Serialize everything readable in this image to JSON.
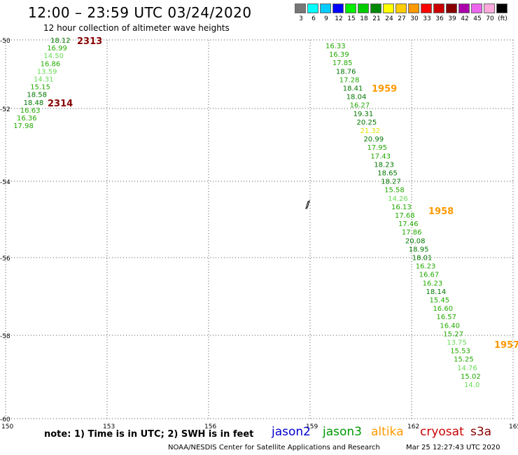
{
  "header": {
    "title": "12:00 – 23:59 UTC 03/24/2020",
    "subtitle": "12 hour collection of altimeter wave heights"
  },
  "color_scale": {
    "colors": [
      "#777777",
      "#00ffff",
      "#00ccff",
      "#0000ff",
      "#00ee00",
      "#00cc00",
      "#008800",
      "#ffff00",
      "#ffcc00",
      "#ff9900",
      "#ff0000",
      "#cc0000",
      "#880000",
      "#aa00aa",
      "#ee66ee",
      "#ffaadd",
      "#000000"
    ],
    "labels": [
      "3",
      "6",
      "9",
      "12",
      "15",
      "18",
      "21",
      "24",
      "27",
      "30",
      "33",
      "36",
      "39",
      "42",
      "45",
      "70",
      "(ft)"
    ]
  },
  "axes": {
    "lon_labels": [
      "150",
      "153",
      "156",
      "159",
      "162",
      "165"
    ],
    "lat_labels": [
      "-50",
      "-52",
      "-54",
      "-56",
      "-58",
      "-60"
    ]
  },
  "passes": [
    {
      "label": "2313",
      "color": "#880000"
    },
    {
      "label": "2314",
      "color": "#880000"
    },
    {
      "label": "1959",
      "color": "#ff9900"
    },
    {
      "label": "1958",
      "color": "#ff9900"
    },
    {
      "label": "1957",
      "color": "#ff9900"
    }
  ],
  "track_left_values": [
    "18.12",
    "16.99",
    "14.50",
    "16.86",
    "13.59",
    "14.31",
    "15.15",
    "18.58",
    "18.48",
    "16.63",
    "16.36",
    "17.98"
  ],
  "track_right_values": [
    "16.33",
    "16.39",
    "17.85",
    "18.76",
    "17.28",
    "18.41",
    "18.04",
    "16.27",
    "19.31",
    "20.25",
    "21.32",
    "20.99",
    "17.95",
    "17.43",
    "18.23",
    "18.65",
    "18.27",
    "15.58",
    "14.26",
    "16.13",
    "17.68",
    "17.46",
    "17.86",
    "20.08",
    "18.95",
    "18.01",
    "16.23",
    "16.67",
    "16.23",
    "18.14",
    "15.45",
    "16.60",
    "16.57",
    "16.40",
    "15.27",
    "13.75",
    "15.53",
    "15.25",
    "14.76",
    "15.02",
    "14.0"
  ],
  "footer": {
    "note": "note: 1) Time is in UTC; 2) SWH is in feet",
    "satellites": [
      {
        "name": "jason2",
        "color": "#0000cc"
      },
      {
        "name": "jason3",
        "color": "#009900"
      },
      {
        "name": "altika",
        "color": "#ff9900"
      },
      {
        "name": "cryosat",
        "color": "#cc0000"
      },
      {
        "name": "s3a",
        "color": "#880000"
      }
    ],
    "credit": "NOAA/NESDIS Center for Satellite Applications and Research",
    "timestamp": "Mar 25 12:27:43 UTC 2020"
  }
}
